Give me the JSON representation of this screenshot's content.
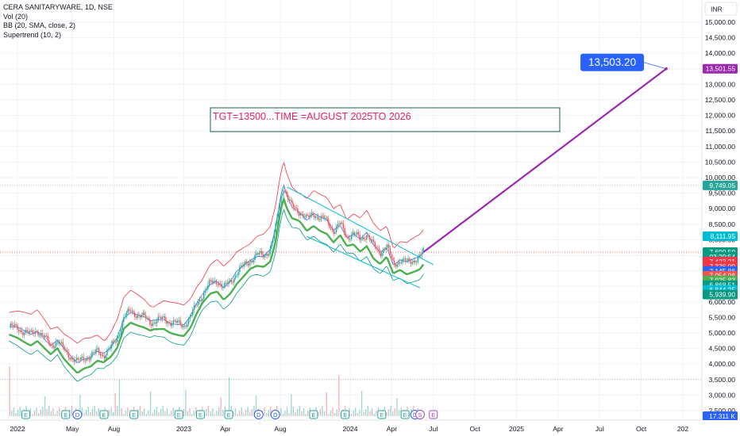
{
  "header": {
    "symbol_line": "CERA SANITARYWARE, 1D, NSE",
    "indicators": [
      "Vol (20)",
      "BB (20, SMA, close, 2)",
      "Supertrend (10, 2)"
    ]
  },
  "currency_button": "INR",
  "annotation": {
    "box_text": "TGT=13500...TIME =AUGUST 2025TO 2026",
    "target_callout": "13,503.20"
  },
  "colors": {
    "up": "#26a69a",
    "down": "#ef5350",
    "bb_upper": "#f23645",
    "bb_lower": "#089981",
    "bb_basis": "#2962ff",
    "supertrend": "#4caf50",
    "channel": "#00bcd4",
    "target_line": "#9c27b0",
    "callout": "#2962ff",
    "box_text": "#e91e63",
    "box_border": "#1e5c5c"
  },
  "chart_data": {
    "type": "candlestick",
    "title": "CERA SANITARYWARE, 1D, NSE",
    "price_axis": {
      "ticks": [
        2500,
        3000,
        3500,
        4000,
        4500,
        5000,
        5500,
        6000,
        6500,
        7000,
        7500,
        8000,
        8500,
        9000,
        9500,
        10000,
        10500,
        11000,
        11500,
        12000,
        12500,
        13000,
        13500,
        14000,
        14500,
        15000
      ],
      "tick_labels": [
        "2,500.00",
        "3,000.00",
        "3,500.00",
        "4,000.00",
        "4,500.00",
        "5,000.00",
        "5,500.00",
        "6,000.00",
        "6,500.00",
        "7,000.00",
        "7,500.00",
        "8,000.00",
        "8,500.00",
        "9,000.00",
        "9,500.00",
        "10,000.00",
        "10,500.00",
        "11,000.00",
        "11,500.00",
        "12,000.00",
        "12,500.00",
        "13,000.00",
        "13,500.00",
        "14,000.00",
        "14,500.00",
        "15,000.00"
      ],
      "range": [
        2300,
        15400
      ]
    },
    "time_axis": {
      "labels": [
        "2022",
        "May",
        "Aug",
        "2023",
        "Apr",
        "Aug",
        "2024",
        "Apr",
        "Jul",
        "Oct",
        "2025",
        "Apr",
        "Jul",
        "Oct",
        "202"
      ],
      "positions": [
        2022.0,
        2022.33,
        2022.58,
        2023.0,
        2023.25,
        2023.58,
        2024.0,
        2024.25,
        2024.5,
        2024.75,
        2025.0,
        2025.25,
        2025.5,
        2025.75,
        2026.0
      ]
    },
    "price_path": [
      [
        2021.95,
        5200
      ],
      [
        2022.0,
        5150
      ],
      [
        2022.04,
        5050
      ],
      [
        2022.08,
        4950
      ],
      [
        2022.12,
        5100
      ],
      [
        2022.16,
        4850
      ],
      [
        2022.2,
        4600
      ],
      [
        2022.24,
        4750
      ],
      [
        2022.28,
        4450
      ],
      [
        2022.32,
        4250
      ],
      [
        2022.36,
        4050
      ],
      [
        2022.4,
        4200
      ],
      [
        2022.44,
        4250
      ],
      [
        2022.48,
        4400
      ],
      [
        2022.52,
        4300
      ],
      [
        2022.56,
        4500
      ],
      [
        2022.6,
        4850
      ],
      [
        2022.64,
        5500
      ],
      [
        2022.68,
        5700
      ],
      [
        2022.72,
        5600
      ],
      [
        2022.76,
        5500
      ],
      [
        2022.8,
        5350
      ],
      [
        2022.84,
        5400
      ],
      [
        2022.88,
        5450
      ],
      [
        2022.92,
        5350
      ],
      [
        2022.96,
        5300
      ],
      [
        2023.0,
        5250
      ],
      [
        2023.04,
        5500
      ],
      [
        2023.08,
        5950
      ],
      [
        2023.12,
        6300
      ],
      [
        2023.16,
        6600
      ],
      [
        2023.2,
        6700
      ],
      [
        2023.24,
        6450
      ],
      [
        2023.28,
        6650
      ],
      [
        2023.32,
        6950
      ],
      [
        2023.36,
        7150
      ],
      [
        2023.4,
        7350
      ],
      [
        2023.44,
        7500
      ],
      [
        2023.48,
        7500
      ],
      [
        2023.52,
        7700
      ],
      [
        2023.55,
        8300
      ],
      [
        2023.58,
        9300
      ],
      [
        2023.6,
        9750
      ],
      [
        2023.62,
        9400
      ],
      [
        2023.65,
        9050
      ],
      [
        2023.7,
        8900
      ],
      [
        2023.74,
        8650
      ],
      [
        2023.78,
        8850
      ],
      [
        2023.82,
        8700
      ],
      [
        2023.86,
        8600
      ],
      [
        2023.9,
        8300
      ],
      [
        2023.94,
        8500
      ],
      [
        2023.98,
        8100
      ],
      [
        2024.02,
        8200
      ],
      [
        2024.06,
        8000
      ],
      [
        2024.1,
        8200
      ],
      [
        2024.14,
        7800
      ],
      [
        2024.18,
        7600
      ],
      [
        2024.22,
        7800
      ],
      [
        2024.26,
        7200
      ],
      [
        2024.3,
        7350
      ],
      [
        2024.34,
        7250
      ],
      [
        2024.38,
        7350
      ],
      [
        2024.42,
        7450
      ],
      [
        2024.44,
        7600
      ]
    ],
    "levels": [
      {
        "label": "13,501.55",
        "value": 13501.55,
        "color": "#9c27b0"
      },
      {
        "label": "9,749.05",
        "value": 9749.05,
        "color": "#26a69a"
      },
      {
        "label": "8,111.95",
        "value": 8111.95,
        "color": "#00bcd4"
      },
      {
        "label": "7,600.50",
        "value": 7600.5,
        "color": "#089981"
      },
      {
        "label": "03:29:54",
        "value": 7452,
        "color": "#089981"
      },
      {
        "label": "7,423.21",
        "value": 7300,
        "color": "#f23645"
      },
      {
        "label": "7,336.90",
        "value": 7148,
        "color": "#f23645"
      },
      {
        "label": "7,145.86",
        "value": 6996,
        "color": "#2962ff"
      },
      {
        "label": "7,054.96",
        "value": 6844,
        "color": "#ef5350"
      },
      {
        "label": "7,025.83",
        "value": 6692,
        "color": "#4caf50"
      },
      {
        "label": "6,868.51",
        "value": 6540,
        "color": "#089981"
      },
      {
        "label": "6,844.25",
        "value": 6388,
        "color": "#00bcd4"
      },
      {
        "label": "5,939.90",
        "value": 6236,
        "color": "#089981"
      },
      {
        "label": "17.311 K",
        "value": 2400,
        "color": "#2962ff"
      }
    ],
    "target": {
      "from": [
        2024.44,
        7600
      ],
      "to": [
        2025.9,
        13501.55
      ],
      "value": 13503.2
    },
    "channel": {
      "upper": [
        [
          2023.62,
          9700
        ],
        [
          2024.5,
          7200
        ]
      ],
      "lower": [
        [
          2023.74,
          8100
        ],
        [
          2024.42,
          6450
        ]
      ]
    },
    "dotted_lines": [
      9749.05,
      7600.5,
      3500
    ],
    "events": [
      2022.05,
      2022.29,
      2022.36,
      2022.52,
      2022.7,
      2022.97,
      2023.1,
      2023.27,
      2023.45,
      2023.55,
      2023.78,
      2023.97,
      2024.19,
      2024.33,
      2024.39,
      2024.42,
      2024.5
    ],
    "event_labels": [
      "E",
      "E",
      "D",
      "E",
      "E",
      "E",
      "E",
      "E",
      "D",
      "D",
      "E",
      "E",
      "E",
      "E",
      "D",
      "S",
      "E"
    ]
  }
}
